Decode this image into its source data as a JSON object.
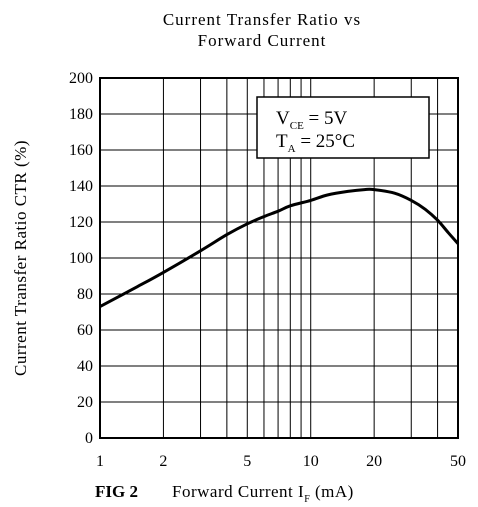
{
  "chart_data": {
    "type": "line",
    "title": "Current Transfer Ratio vs",
    "subtitle": "Forward Current",
    "figure_label": "FIG 2",
    "xlabel": {
      "prefix": "Forward Current I",
      "sub": "F",
      "suffix": " (mA)"
    },
    "ylabel": "Current Transfer Ratio CTR (%)",
    "x_scale": "log",
    "xlim": [
      1,
      50
    ],
    "ylim": [
      0,
      200
    ],
    "x_ticks": [
      1,
      2,
      5,
      10,
      20,
      50
    ],
    "x_gridlines": [
      1,
      2,
      3,
      4,
      5,
      6,
      7,
      8,
      9,
      10,
      20,
      30,
      40,
      50
    ],
    "y_ticks": [
      0,
      20,
      40,
      60,
      80,
      100,
      120,
      140,
      160,
      180,
      200
    ],
    "grid": true,
    "annotation": {
      "line1": {
        "main": "V",
        "sub": "CE",
        "value": " =  5V"
      },
      "line2": {
        "main": "T",
        "sub": "A",
        "value": " =  25°C"
      },
      "placement": "top-right"
    },
    "series": [
      {
        "x": [
          1,
          1.5,
          2,
          3,
          4,
          5,
          6,
          7,
          8,
          10,
          12,
          15,
          18,
          20,
          25,
          30,
          35,
          40,
          45,
          50
        ],
        "values": [
          73,
          84,
          92,
          104,
          113,
          119,
          123,
          126,
          129,
          132,
          135,
          137,
          138,
          138,
          136,
          132,
          127,
          121,
          114,
          108
        ]
      }
    ]
  }
}
